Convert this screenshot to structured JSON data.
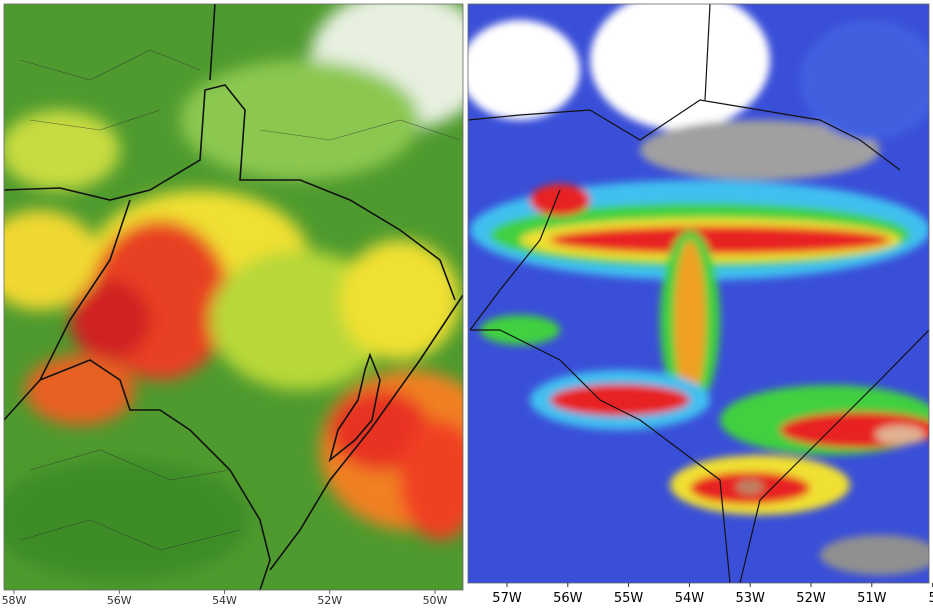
{
  "left_map": {
    "lon_labels": [
      "58W",
      "56W",
      "54W",
      "52W",
      "50W"
    ]
  },
  "right_map": {
    "lon_labels": [
      "57W",
      "56W",
      "55W",
      "54W",
      "53W",
      "52W",
      "51W",
      "5"
    ]
  }
}
